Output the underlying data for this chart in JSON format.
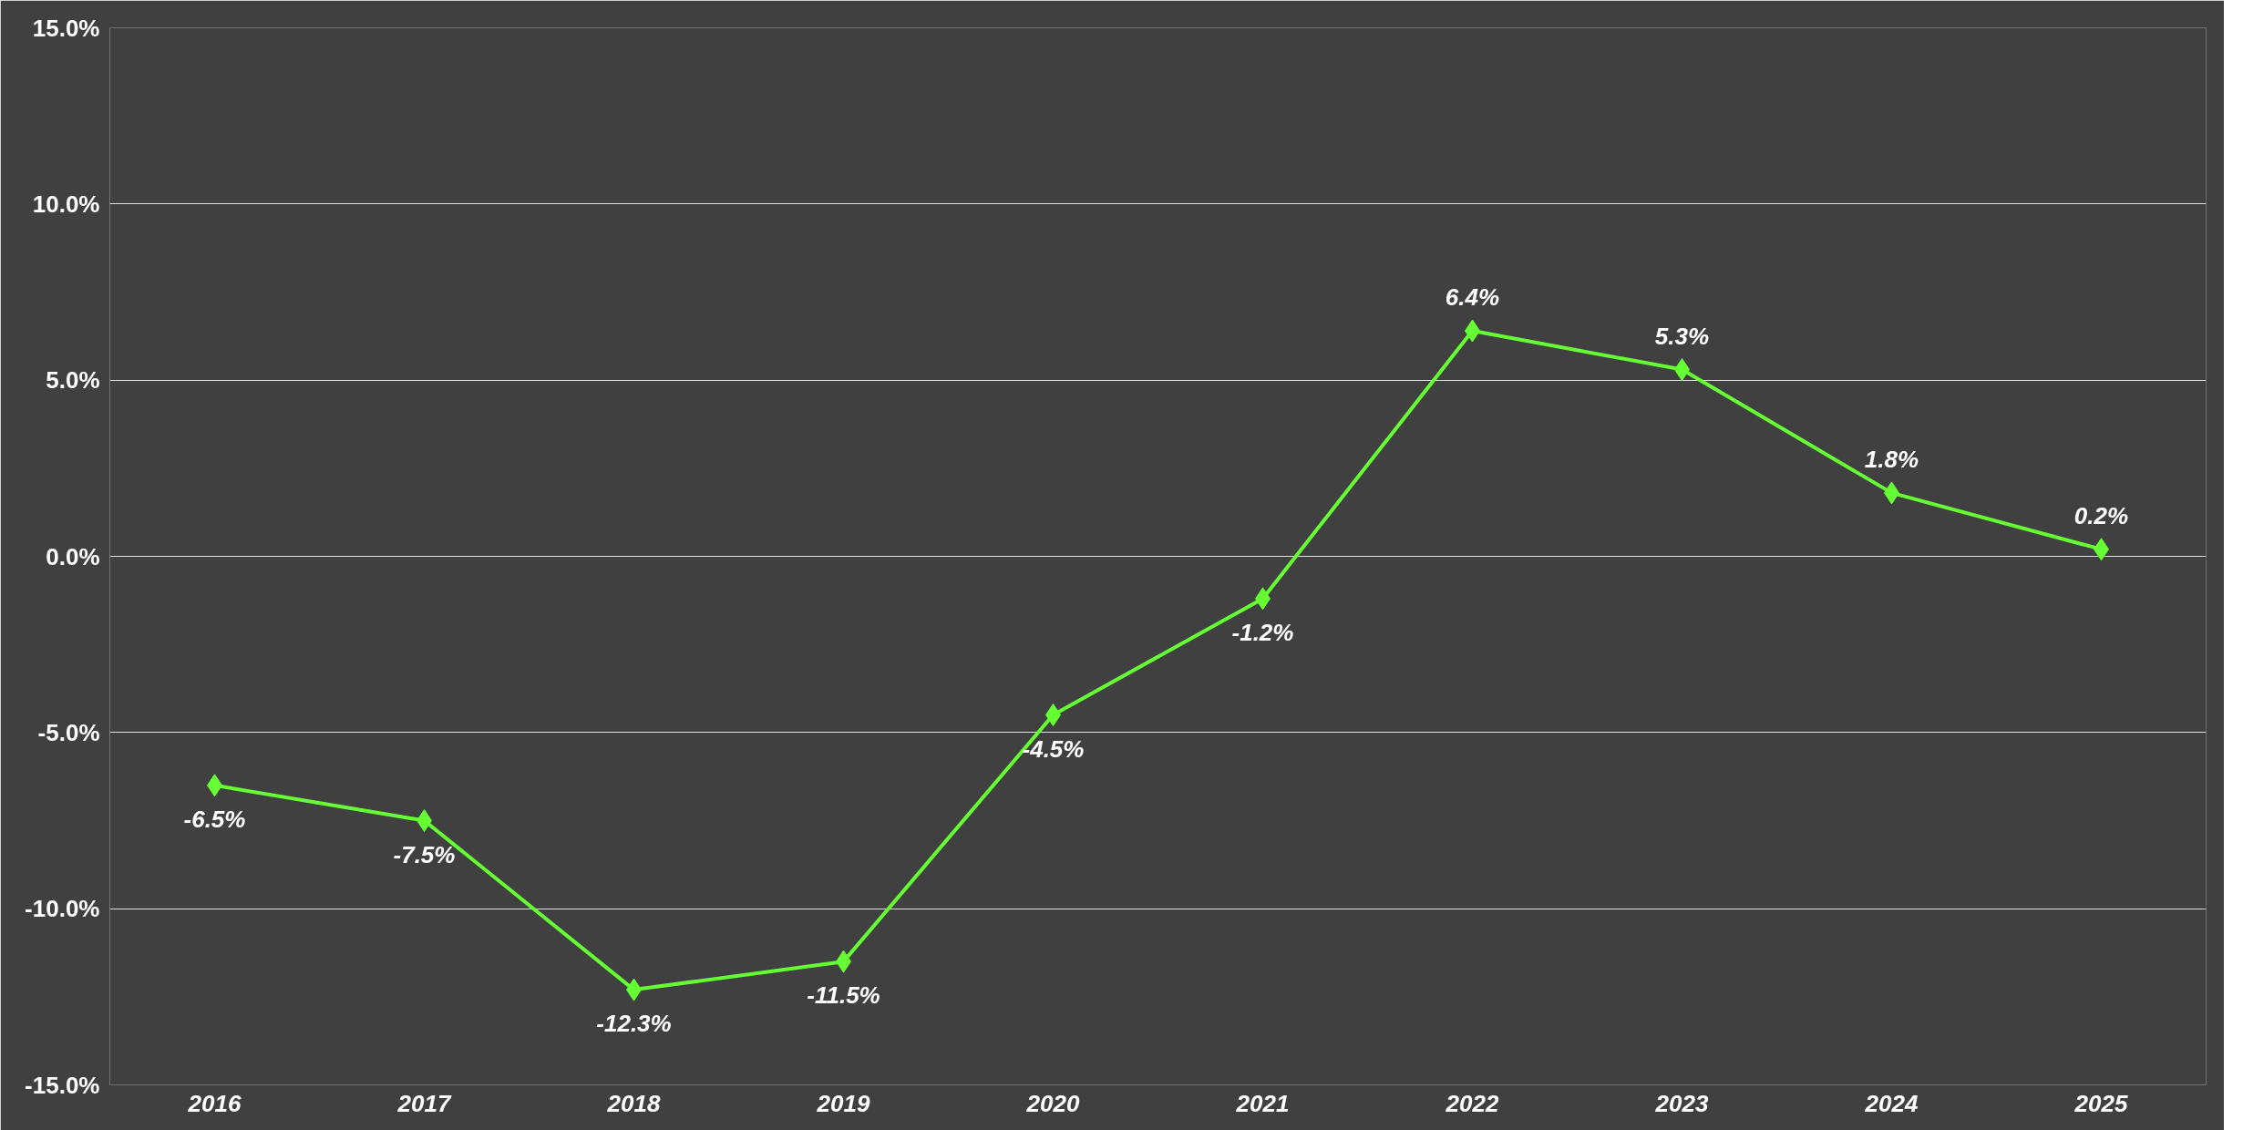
{
  "chart_data": {
    "type": "line",
    "categories": [
      "2016",
      "2017",
      "2018",
      "2019",
      "2020",
      "2021",
      "2022",
      "2023",
      "2024",
      "2025"
    ],
    "series": [
      {
        "color": "#66ff33",
        "values": [
          -6.5,
          -7.5,
          -12.3,
          -11.5,
          -4.5,
          -1.2,
          6.4,
          5.3,
          1.8,
          0.2
        ],
        "value_labels": [
          "-6.5%",
          "-7.5%",
          "-12.3%",
          "-11.5%",
          "-4.5%",
          "-1.2%",
          "6.4%",
          "5.3%",
          "1.8%",
          "0.2%"
        ]
      }
    ],
    "ylim": [
      -15,
      15
    ],
    "yticks": [
      {
        "value": -15,
        "label": "-15.0%"
      },
      {
        "value": -10,
        "label": "-10.0%"
      },
      {
        "value": -5,
        "label": "-5.0%"
      },
      {
        "value": 0,
        "label": "0.0%"
      },
      {
        "value": 5,
        "label": "5.0%"
      },
      {
        "value": 10,
        "label": "10.0%"
      },
      {
        "value": 15,
        "label": "15.0%"
      }
    ],
    "grid": "y",
    "marker": "diamond",
    "line_style": "solid"
  }
}
